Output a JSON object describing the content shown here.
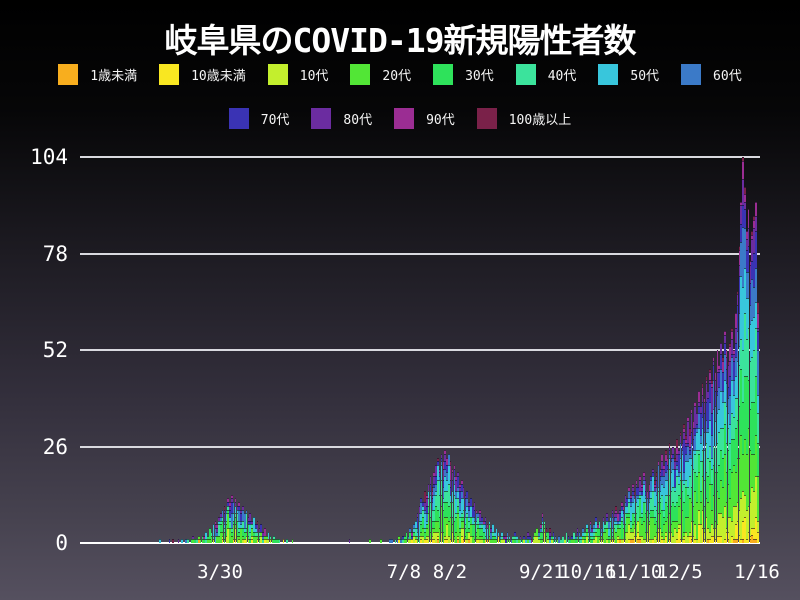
{
  "title": "岐阜県のCOVID-19新規陽性者数",
  "colors": {
    "background_top": "#000000",
    "background_bottom": "#55505f",
    "grid": "#d9d9df",
    "baseline": "#ffffff",
    "text": "#ffffff"
  },
  "legend": {
    "row1": [
      {
        "label": "1歳未満",
        "color": "#f8ae1e"
      },
      {
        "label": "10歳未満",
        "color": "#f9e721"
      },
      {
        "label": "10代",
        "color": "#c3ef2d"
      },
      {
        "label": "20代",
        "color": "#52e636"
      },
      {
        "label": "30代",
        "color": "#2ee25b"
      },
      {
        "label": "40代",
        "color": "#3be39c"
      },
      {
        "label": "50代",
        "color": "#38c6dc"
      },
      {
        "label": "60代",
        "color": "#3b7ac8"
      }
    ],
    "row2": [
      {
        "label": "70代",
        "color": "#3a33b4"
      },
      {
        "label": "80代",
        "color": "#6b2ca0"
      },
      {
        "label": "90代",
        "color": "#9b2d93"
      },
      {
        "label": "100歳以上",
        "color": "#7a2149"
      }
    ]
  },
  "chart_data": {
    "type": "bar",
    "stacked": true,
    "title": "岐阜県のCOVID-19新規陽性者数",
    "xlabel": "",
    "ylabel": "",
    "ylim": [
      0,
      104
    ],
    "y_ticks": [
      0,
      26,
      52,
      78,
      104
    ],
    "grid": true,
    "legend_position": "top",
    "start_date": "2020-02-20",
    "end_date": "2021-01-16",
    "x_tick_labels": [
      "3/30",
      "7/8",
      "8/2",
      "9/21",
      "10/16",
      "11/10",
      "12/5",
      "1/16"
    ],
    "x_tick_day_index": [
      39,
      139,
      164,
      214,
      239,
      264,
      289,
      331
    ],
    "groups_bottom_to_top": [
      "1歳未満",
      "10歳未満",
      "10代",
      "20代",
      "30代",
      "40代",
      "50代",
      "60代",
      "70代",
      "80代",
      "90代",
      "100歳以上"
    ],
    "group_colors": [
      "#f8ae1e",
      "#f9e721",
      "#c3ef2d",
      "#52e636",
      "#2ee25b",
      "#3be39c",
      "#38c6dc",
      "#3b7ac8",
      "#3a33b4",
      "#6b2ca0",
      "#9b2d93",
      "#7a2149"
    ],
    "group_fractions": [
      0.004,
      0.036,
      0.09,
      0.18,
      0.15,
      0.14,
      0.13,
      0.09,
      0.075,
      0.06,
      0.035,
      0.01
    ],
    "daily_totals": [
      0,
      0,
      0,
      0,
      0,
      0,
      1,
      0,
      0,
      0,
      0,
      1,
      0,
      1,
      0,
      0,
      1,
      0,
      1,
      0,
      1,
      1,
      0,
      1,
      2,
      1,
      1,
      2,
      1,
      2,
      2,
      3,
      2,
      4,
      3,
      5,
      6,
      5,
      7,
      8,
      9,
      10,
      9,
      12,
      11,
      13,
      11,
      12,
      10,
      11,
      9,
      10,
      8,
      9,
      7,
      8,
      6,
      7,
      5,
      6,
      4,
      5,
      3,
      4,
      2,
      3,
      2,
      1,
      2,
      1,
      1,
      1,
      0,
      1,
      0,
      1,
      0,
      0,
      1,
      0,
      0,
      0,
      0,
      0,
      0,
      0,
      0,
      0,
      0,
      0,
      0,
      0,
      0,
      0,
      0,
      0,
      0,
      0,
      0,
      0,
      0,
      0,
      0,
      0,
      0,
      0,
      0,
      0,
      0,
      1,
      0,
      0,
      0,
      0,
      0,
      0,
      0,
      0,
      0,
      0,
      1,
      0,
      0,
      0,
      0,
      0,
      1,
      0,
      0,
      0,
      0,
      1,
      1,
      0,
      1,
      1,
      2,
      1,
      2,
      2,
      3,
      2,
      4,
      3,
      5,
      6,
      8,
      10,
      12,
      11,
      14,
      13,
      16,
      18,
      15,
      19,
      21,
      23,
      20,
      24,
      22,
      25,
      23,
      24,
      22,
      20,
      21,
      18,
      19,
      16,
      17,
      15,
      13,
      14,
      11,
      12,
      10,
      11,
      9,
      8,
      9,
      7,
      6,
      7,
      5,
      6,
      4,
      5,
      3,
      4,
      3,
      2,
      3,
      2,
      2,
      3,
      2,
      1,
      2,
      3,
      2,
      1,
      2,
      1,
      2,
      1,
      3,
      2,
      1,
      2,
      3,
      4,
      3,
      5,
      8,
      6,
      4,
      3,
      4,
      2,
      3,
      2,
      1,
      2,
      1,
      2,
      1,
      3,
      2,
      1,
      2,
      3,
      2,
      4,
      3,
      2,
      4,
      3,
      5,
      4,
      6,
      4,
      5,
      7,
      5,
      6,
      4,
      7,
      5,
      8,
      6,
      7,
      9,
      8,
      10,
      8,
      9,
      11,
      10,
      13,
      12,
      15,
      13,
      16,
      14,
      17,
      15,
      18,
      16,
      19,
      17,
      14,
      16,
      18,
      20,
      17,
      19,
      22,
      20,
      24,
      21,
      25,
      23,
      27,
      24,
      26,
      23,
      28,
      25,
      30,
      27,
      32,
      29,
      34,
      31,
      36,
      33,
      38,
      35,
      41,
      37,
      43,
      39,
      45,
      41,
      47,
      44,
      50,
      46,
      52,
      48,
      54,
      50,
      57,
      52,
      49,
      54,
      58,
      52,
      62,
      68,
      80,
      92,
      104,
      96,
      84,
      90,
      76,
      84,
      88,
      92,
      65
    ]
  }
}
